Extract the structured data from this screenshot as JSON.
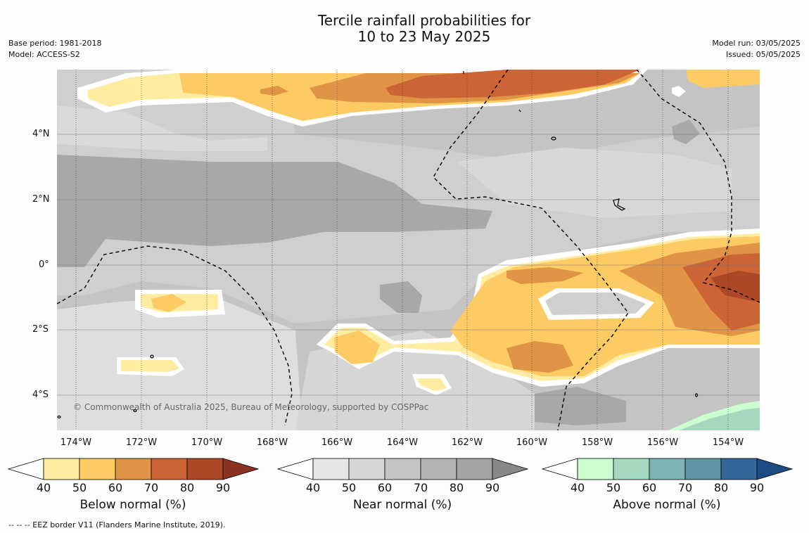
{
  "title_line1": "Tercile rainfall probabilities for",
  "title_line2": "10 to 23 May 2025",
  "base_period": "Base period: 1981-2018",
  "model": "Model: ACCESS-S2",
  "model_run": "Model run: 03/05/2025",
  "issued": "Issued: 05/05/2025",
  "copyright": "© Commonwealth of Australia 2025, Bureau of Meteorology, supported by COSPPac",
  "footer": "--  --  -- EEZ border V11 (Flanders Marine Institute, 2019).",
  "map": {
    "lat_labels": [
      "4°N",
      "2°N",
      "0°",
      "2°S",
      "4°S"
    ],
    "lon_labels": [
      "174°W",
      "172°W",
      "170°W",
      "168°W",
      "166°W",
      "164°W",
      "162°W",
      "160°W",
      "158°W",
      "156°W",
      "154°W"
    ]
  },
  "colorbars": [
    {
      "label": "Below normal (%)",
      "ticks": [
        "40",
        "50",
        "60",
        "70",
        "80",
        "90"
      ],
      "colors": [
        "#ffffff",
        "#ffeca0",
        "#fdcb64",
        "#e09446",
        "#cc6436",
        "#ad4826",
        "#8c3220"
      ]
    },
    {
      "label": "Near normal (%)",
      "ticks": [
        "40",
        "50",
        "60",
        "70",
        "80",
        "90"
      ],
      "colors": [
        "#ffffff",
        "#e6e6e6",
        "#d6d6d6",
        "#c4c4c4",
        "#b3b3b3",
        "#a3a3a3",
        "#888888"
      ]
    },
    {
      "label": "Above normal (%)",
      "ticks": [
        "40",
        "50",
        "60",
        "70",
        "80",
        "90"
      ],
      "colors": [
        "#ffffff",
        "#ccffd0",
        "#a4d9c0",
        "#7eb5b2",
        "#5e93a1",
        "#33669a",
        "#1c4c82"
      ]
    }
  ]
}
